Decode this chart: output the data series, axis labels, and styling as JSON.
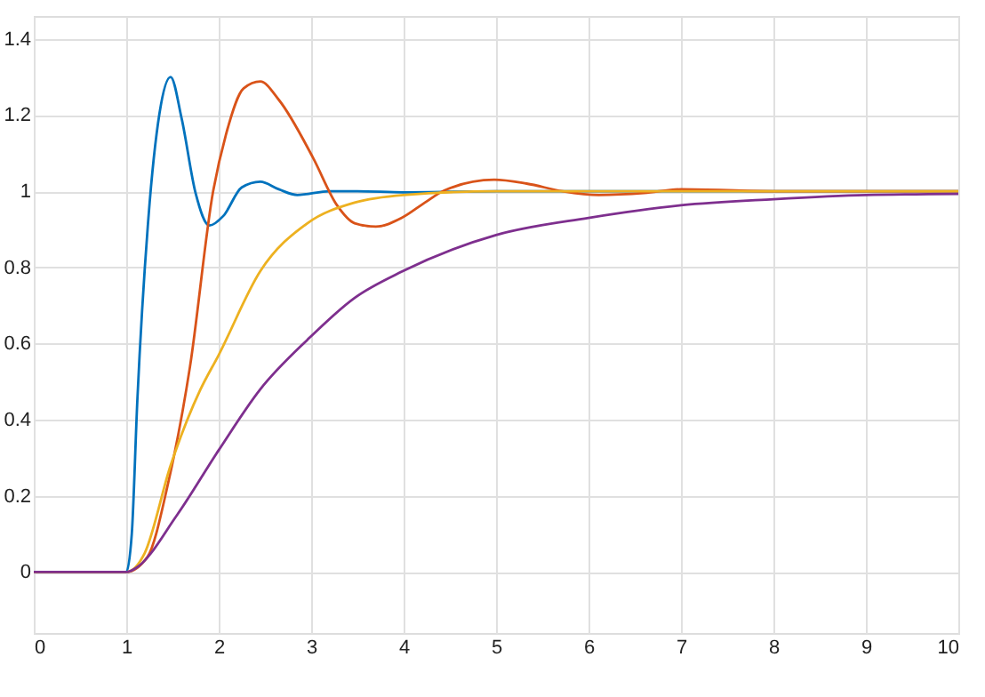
{
  "chart_data": {
    "type": "line",
    "xlim": [
      0,
      10
    ],
    "xticks": [
      0,
      1,
      2,
      3,
      4,
      5,
      6,
      7,
      8,
      9,
      10
    ],
    "ylim": [
      -0.16,
      1.46
    ],
    "yticks": [
      0,
      0.2,
      0.4,
      0.6,
      0.8,
      1,
      1.2,
      1.4
    ],
    "grid": true,
    "line_style": "solid",
    "marker": "none",
    "series": [
      {
        "color": "#0072bd",
        "x": [
          0,
          1,
          1.06,
          1.12,
          1.24,
          1.36,
          1.48,
          1.6,
          1.75,
          1.9,
          2.05,
          2.25,
          2.45,
          2.65,
          2.85,
          3.2,
          3.5,
          4,
          5,
          10
        ],
        "values": [
          0,
          0,
          0.1,
          0.45,
          0.93,
          1.205,
          1.3,
          1.19,
          0.995,
          0.91,
          0.935,
          1.01,
          1.025,
          1.005,
          0.99,
          1,
          1,
          0.997,
          1,
          1
        ]
      },
      {
        "color": "#d95319",
        "x": [
          0,
          1,
          1.23,
          1.45,
          1.69,
          1.94,
          2.08,
          2.27,
          2.45,
          2.65,
          3.02,
          3.28,
          3.47,
          3.7,
          3.98,
          4.23,
          4.44,
          4.98,
          5.33,
          5.72,
          6.11,
          6.6,
          7,
          8,
          10
        ],
        "values": [
          0,
          0,
          0.04,
          0.23,
          0.54,
          1,
          1.15,
          1.27,
          1.288,
          1.24,
          1.088,
          0.963,
          0.916,
          0.907,
          0.93,
          0.97,
          1.002,
          1.03,
          1.02,
          1,
          0.99,
          0.995,
          1.005,
          1,
          1
        ]
      },
      {
        "color": "#edb120",
        "x": [
          0,
          1,
          1.2,
          1.48,
          1.8,
          2,
          2.45,
          2.96,
          3.47,
          4,
          5,
          6,
          10
        ],
        "values": [
          0,
          0,
          0.05,
          0.28,
          0.478,
          0.57,
          0.79,
          0.916,
          0.97,
          0.99,
          1,
          1,
          1
        ]
      },
      {
        "color": "#7e2f8e",
        "x": [
          0,
          1,
          1.1,
          1.55,
          2,
          2.45,
          2.96,
          3.47,
          3.99,
          5,
          6,
          7,
          8,
          9,
          10
        ],
        "values": [
          0,
          0,
          0.01,
          0.15,
          0.32,
          0.48,
          0.61,
          0.72,
          0.79,
          0.885,
          0.93,
          0.963,
          0.979,
          0.99,
          0.993
        ]
      }
    ]
  }
}
